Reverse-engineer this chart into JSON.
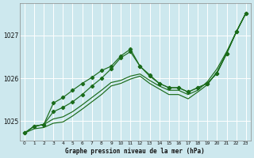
{
  "xlabel": "Graphe pression niveau de la mer (hPa)",
  "bg_color": "#cde8ee",
  "grid_color": "#ffffff",
  "line_color": "#1a6b1a",
  "x_ticks": [
    0,
    1,
    2,
    3,
    4,
    5,
    6,
    7,
    8,
    9,
    10,
    11,
    12,
    13,
    14,
    15,
    16,
    17,
    18,
    19,
    20,
    21,
    22,
    23
  ],
  "ylim": [
    1024.55,
    1027.75
  ],
  "yticks": [
    1025,
    1026,
    1027
  ],
  "series_marked": [
    [
      1024.72,
      1024.88,
      1024.92,
      1025.42,
      1025.55,
      1025.72,
      1025.88,
      1026.02,
      1026.18,
      1026.28,
      1026.52,
      1026.68,
      1026.28,
      1026.08,
      1025.88,
      1025.78,
      1025.78,
      1025.68,
      1025.78,
      1025.88,
      1026.12,
      1026.58,
      1027.08,
      1027.52
    ],
    [
      1024.72,
      1024.88,
      1024.92,
      1025.22,
      1025.32,
      1025.45,
      1025.62,
      1025.82,
      1026.0,
      1026.22,
      1026.48,
      1026.62,
      1026.28,
      1026.05,
      1025.88,
      1025.78,
      1025.78,
      1025.68,
      1025.78,
      1025.88,
      1026.12,
      1026.58,
      1027.08,
      1027.52
    ]
  ],
  "series_plain": [
    [
      1024.72,
      1024.88,
      1024.92,
      1025.05,
      1025.1,
      1025.22,
      1025.38,
      1025.55,
      1025.72,
      1025.9,
      1025.95,
      1026.05,
      1026.1,
      1025.95,
      1025.82,
      1025.72,
      1025.72,
      1025.62,
      1025.72,
      1025.92,
      1026.22,
      1026.62,
      1027.08,
      1027.52
    ],
    [
      1024.72,
      1024.82,
      1024.85,
      1024.95,
      1024.98,
      1025.12,
      1025.28,
      1025.45,
      1025.62,
      1025.82,
      1025.88,
      1025.98,
      1026.05,
      1025.88,
      1025.75,
      1025.62,
      1025.62,
      1025.52,
      1025.68,
      1025.85,
      1026.15,
      1026.58,
      1027.08,
      1027.52
    ]
  ]
}
